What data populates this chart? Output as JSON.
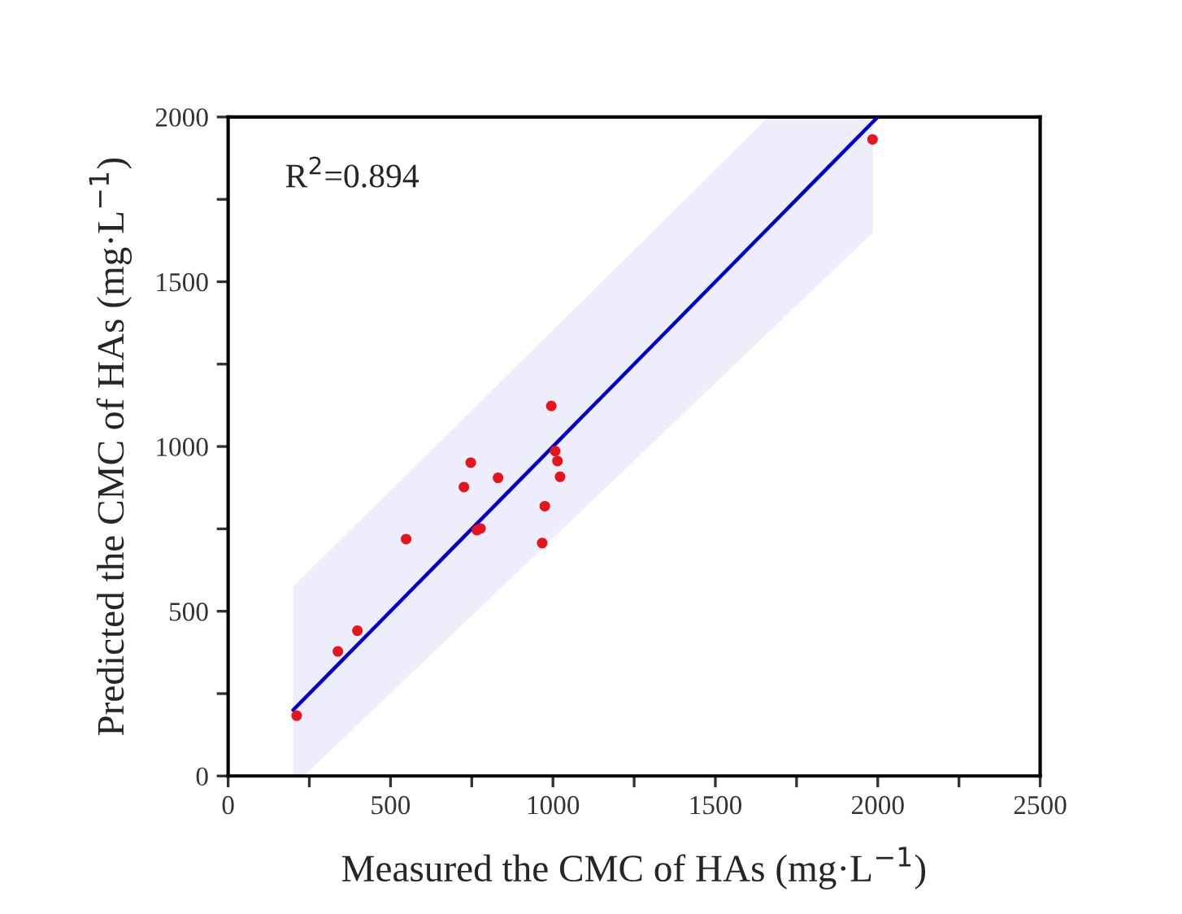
{
  "chart_data": {
    "type": "scatter",
    "xlabel": "Measured the CMC of HAs (mg·L$^{−1}$)",
    "ylabel": "Predicted the CMC of HAs (mg·L$^{−1}$)",
    "annotations": [
      "R$^{2}$=0.894"
    ],
    "xlim": [
      0,
      2500
    ],
    "ylim": [
      0,
      2000
    ],
    "xticks": [
      0,
      {
        "value": 250,
        "label": null
      },
      500,
      {
        "value": 750,
        "label": null
      },
      1000,
      {
        "value": 1250,
        "label": null
      },
      1500,
      {
        "value": 1750,
        "label": null
      },
      2000,
      {
        "value": 2250,
        "label": null
      },
      2500
    ],
    "yticks": [
      0,
      {
        "value": 250,
        "label": null
      },
      500,
      {
        "value": 750,
        "label": null
      },
      1000,
      {
        "value": 1250,
        "label": null
      },
      1500,
      {
        "value": 1750,
        "label": null
      },
      2000
    ],
    "grid": false,
    "legend": false,
    "marker": "circle",
    "series": [
      {
        "color": "#e8141c",
        "x": [
          211,
          338,
          398,
          548,
          726,
          747,
          766,
          777,
          831,
          967,
          975,
          995,
          1007,
          1014,
          1022,
          1984
        ],
        "values": [
          183,
          378,
          441,
          719,
          877,
          951,
          746,
          751,
          905,
          707,
          819,
          1123,
          986,
          956,
          908,
          1932
        ]
      },
      {
        "type": "line",
        "color": "#0000cc",
        "line_style": "solid",
        "marker": "none",
        "x": [
          200,
          233,
          600,
          1000,
          1400,
          1664,
          1800,
          1985,
          2000
        ],
        "values": [
          200,
          233,
          600,
          1000,
          1400,
          1664,
          1800,
          1985,
          2000
        ],
        "lower": [
          0,
          0,
          345,
          722,
          1098,
          1347,
          1475,
          1649,
          null
        ],
        "upper": [
          575,
          607,
          964,
          1353,
          1743,
          2000,
          2000,
          2000,
          null
        ]
      }
    ]
  }
}
